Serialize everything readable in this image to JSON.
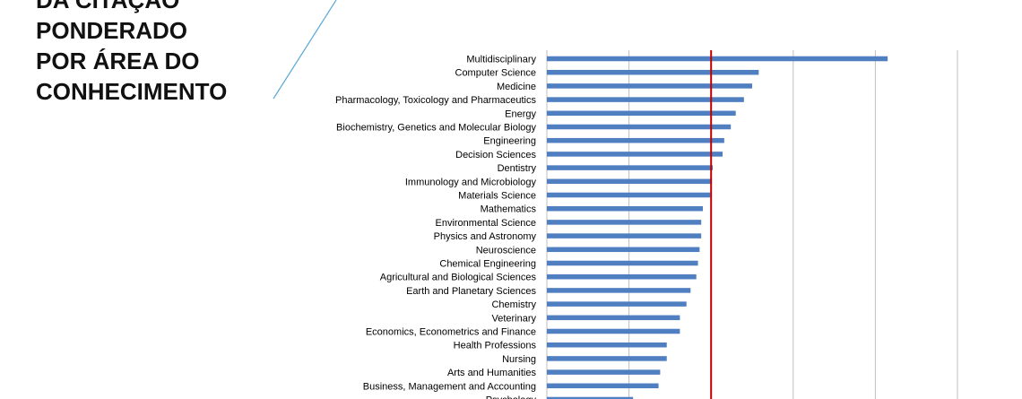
{
  "slide": {
    "title_lines": [
      "DA CITAÇÃO",
      "PONDERADO",
      "POR ÁREA DO",
      "CONHECIMENTO"
    ]
  },
  "colors": {
    "bar": "#4f7fc1",
    "reference_line": "#c00000",
    "grid": "#bfbfbf",
    "accent_line": "#5aa9d6"
  },
  "chart_data": {
    "type": "bar",
    "orientation": "horizontal",
    "title": "",
    "xlabel": "",
    "ylabel": "",
    "xlim": [
      0,
      5
    ],
    "grid": true,
    "reference_line": {
      "value": 2
    },
    "categories": [
      "Multidisciplinary",
      "Computer Science",
      "Medicine",
      "Pharmacology, Toxicology and Pharmaceutics",
      "Energy",
      "Biochemistry, Genetics and Molecular Biology",
      "Engineering",
      "Decision Sciences",
      "Dentistry",
      "Immunology and Microbiology",
      "Materials Science",
      "Mathematics",
      "Environmental Science",
      "Physics and Astronomy",
      "Neuroscience",
      "Chemical Engineering",
      "Agricultural and Biological Sciences",
      "Earth and Planetary Sciences",
      "Chemistry",
      "Veterinary",
      "Economics, Econometrics and Finance",
      "Health Professions",
      "Nursing",
      "Arts and Humanities",
      "Business, Management and Accounting",
      "Psychology"
    ],
    "values": [
      4.15,
      2.58,
      2.5,
      2.4,
      2.3,
      2.24,
      2.16,
      2.14,
      2.02,
      2.01,
      1.99,
      1.9,
      1.88,
      1.88,
      1.86,
      1.84,
      1.82,
      1.75,
      1.7,
      1.62,
      1.62,
      1.46,
      1.46,
      1.38,
      1.36,
      1.05
    ]
  }
}
